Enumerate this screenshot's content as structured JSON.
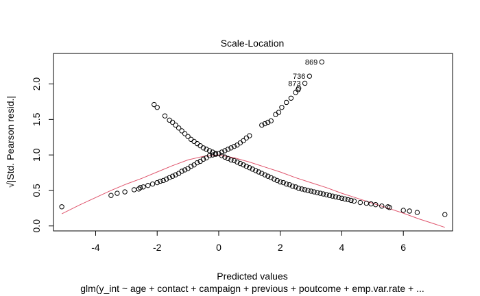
{
  "chart_data": {
    "type": "scatter",
    "title": "Scale-Location",
    "xlabel": "Predicted values",
    "ylabel": "√|Std. Pearson resid.|",
    "subtitle": "glm(y_int ~ age + contact + campaign + previous + poutcome + emp.var.rate + ...",
    "xlim": [
      -5.37,
      7.6
    ],
    "ylim": [
      -0.07,
      2.43
    ],
    "xticks": [
      -4,
      -2,
      0,
      2,
      4,
      6
    ],
    "yticks": [
      0.0,
      0.5,
      1.0,
      1.5,
      2.0
    ],
    "xtick_labels": [
      "-4",
      "-2",
      "0",
      "2",
      "4",
      "6"
    ],
    "ytick_labels": [
      "0.0",
      "0.5",
      "1.0",
      "1.5",
      "2.0"
    ],
    "grid": false,
    "point_color": "#000000",
    "smooth_color": "#DF536B",
    "points": [
      [
        -5.1,
        0.27
      ],
      [
        -3.5,
        0.43
      ],
      [
        -3.3,
        0.46
      ],
      [
        -3.05,
        0.48
      ],
      [
        -2.75,
        0.51
      ],
      [
        -2.6,
        0.52
      ],
      [
        -2.55,
        0.54
      ],
      [
        -2.45,
        0.55
      ],
      [
        -2.3,
        0.57
      ],
      [
        -2.15,
        0.59
      ],
      [
        -2.0,
        0.61
      ],
      [
        -1.9,
        0.63
      ],
      [
        -1.8,
        0.64
      ],
      [
        -1.7,
        0.66
      ],
      [
        -1.6,
        0.68
      ],
      [
        -1.5,
        0.7
      ],
      [
        -1.4,
        0.72
      ],
      [
        -1.3,
        0.74
      ],
      [
        -1.2,
        0.77
      ],
      [
        -1.1,
        0.79
      ],
      [
        -1.0,
        0.81
      ],
      [
        -0.9,
        0.84
      ],
      [
        -0.8,
        0.86
      ],
      [
        -0.7,
        0.89
      ],
      [
        -0.6,
        0.91
      ],
      [
        -0.5,
        0.94
      ],
      [
        -0.4,
        0.96
      ],
      [
        -0.3,
        0.99
      ],
      [
        -0.2,
        1.0
      ],
      [
        -0.1,
        1.01
      ],
      [
        0.0,
        1.02
      ],
      [
        0.1,
        1.04
      ],
      [
        0.2,
        1.06
      ],
      [
        0.3,
        1.08
      ],
      [
        0.4,
        1.1
      ],
      [
        0.5,
        1.12
      ],
      [
        0.6,
        1.14
      ],
      [
        0.7,
        1.17
      ],
      [
        0.8,
        1.2
      ],
      [
        0.9,
        1.24
      ],
      [
        1.0,
        1.27
      ],
      [
        1.4,
        1.42
      ],
      [
        1.5,
        1.44
      ],
      [
        1.6,
        1.46
      ],
      [
        1.7,
        1.48
      ],
      [
        1.85,
        1.57
      ],
      [
        1.95,
        1.6
      ],
      [
        2.05,
        1.67
      ],
      [
        2.2,
        1.74
      ],
      [
        2.35,
        1.8
      ],
      [
        2.5,
        1.88
      ],
      [
        2.58,
        1.92
      ],
      [
        2.6,
        1.94
      ],
      [
        2.8,
        2.01
      ],
      [
        2.95,
        2.11
      ],
      [
        3.35,
        2.31
      ],
      [
        -2.1,
        1.71
      ],
      [
        -2.0,
        1.67
      ],
      [
        -1.75,
        1.55
      ],
      [
        -1.6,
        1.49
      ],
      [
        -1.5,
        1.46
      ],
      [
        -1.4,
        1.42
      ],
      [
        -1.3,
        1.38
      ],
      [
        -1.2,
        1.34
      ],
      [
        -1.1,
        1.3
      ],
      [
        -1.0,
        1.26
      ],
      [
        -0.9,
        1.22
      ],
      [
        -0.8,
        1.19
      ],
      [
        -0.7,
        1.16
      ],
      [
        -0.6,
        1.13
      ],
      [
        -0.5,
        1.1
      ],
      [
        -0.4,
        1.08
      ],
      [
        -0.3,
        1.06
      ],
      [
        -0.2,
        1.04
      ],
      [
        -0.1,
        1.02
      ],
      [
        0.1,
        0.99
      ],
      [
        0.2,
        0.97
      ],
      [
        0.3,
        0.95
      ],
      [
        0.4,
        0.93
      ],
      [
        0.5,
        0.92
      ],
      [
        0.6,
        0.9
      ],
      [
        0.7,
        0.88
      ],
      [
        0.8,
        0.86
      ],
      [
        0.9,
        0.84
      ],
      [
        1.0,
        0.82
      ],
      [
        1.1,
        0.8
      ],
      [
        1.2,
        0.78
      ],
      [
        1.3,
        0.76
      ],
      [
        1.4,
        0.74
      ],
      [
        1.5,
        0.72
      ],
      [
        1.6,
        0.7
      ],
      [
        1.7,
        0.68
      ],
      [
        1.8,
        0.66
      ],
      [
        1.9,
        0.64
      ],
      [
        2.0,
        0.62
      ],
      [
        2.1,
        0.61
      ],
      [
        2.2,
        0.59
      ],
      [
        2.3,
        0.58
      ],
      [
        2.4,
        0.56
      ],
      [
        2.5,
        0.55
      ],
      [
        2.6,
        0.53
      ],
      [
        2.7,
        0.52
      ],
      [
        2.8,
        0.51
      ],
      [
        2.9,
        0.5
      ],
      [
        3.0,
        0.49
      ],
      [
        3.1,
        0.48
      ],
      [
        3.2,
        0.47
      ],
      [
        3.3,
        0.46
      ],
      [
        3.4,
        0.45
      ],
      [
        3.5,
        0.44
      ],
      [
        3.6,
        0.43
      ],
      [
        3.7,
        0.42
      ],
      [
        3.8,
        0.41
      ],
      [
        3.9,
        0.4
      ],
      [
        4.0,
        0.39
      ],
      [
        4.1,
        0.38
      ],
      [
        4.2,
        0.37
      ],
      [
        4.3,
        0.36
      ],
      [
        4.4,
        0.35
      ],
      [
        4.6,
        0.33
      ],
      [
        4.8,
        0.32
      ],
      [
        4.95,
        0.31
      ],
      [
        5.1,
        0.3
      ],
      [
        5.3,
        0.28
      ],
      [
        5.5,
        0.27
      ],
      [
        5.55,
        0.26
      ],
      [
        6.0,
        0.22
      ],
      [
        6.2,
        0.21
      ],
      [
        6.45,
        0.19
      ],
      [
        7.35,
        0.16
      ]
    ],
    "smooth_line": [
      [
        -5.1,
        0.17
      ],
      [
        -4.5,
        0.3
      ],
      [
        -4.0,
        0.4
      ],
      [
        -3.5,
        0.5
      ],
      [
        -3.0,
        0.59
      ],
      [
        -2.5,
        0.67
      ],
      [
        -2.0,
        0.76
      ],
      [
        -1.5,
        0.85
      ],
      [
        -1.0,
        0.93
      ],
      [
        -0.5,
        0.98
      ],
      [
        0.0,
        1.0
      ],
      [
        0.5,
        0.96
      ],
      [
        1.0,
        0.9
      ],
      [
        1.5,
        0.83
      ],
      [
        2.0,
        0.76
      ],
      [
        2.5,
        0.68
      ],
      [
        3.0,
        0.61
      ],
      [
        3.5,
        0.54
      ],
      [
        4.0,
        0.46
      ],
      [
        4.5,
        0.39
      ],
      [
        5.0,
        0.32
      ],
      [
        5.5,
        0.25
      ],
      [
        6.0,
        0.18
      ],
      [
        6.5,
        0.1
      ],
      [
        7.0,
        0.03
      ],
      [
        7.35,
        -0.02
      ]
    ],
    "annotations": [
      {
        "label": "869",
        "x": 3.35,
        "y": 2.31
      },
      {
        "label": "736",
        "x": 2.95,
        "y": 2.11
      },
      {
        "label": "873",
        "x": 2.8,
        "y": 2.01
      }
    ]
  }
}
